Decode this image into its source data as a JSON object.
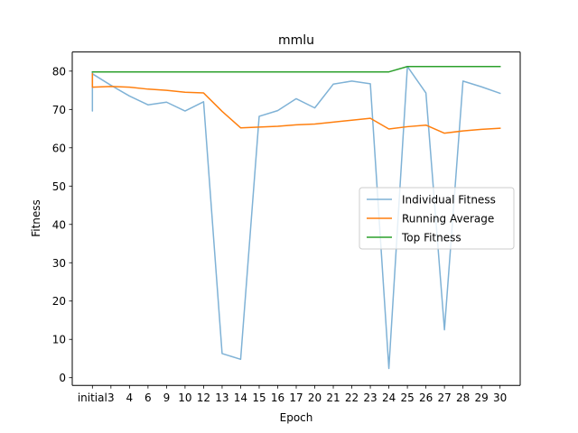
{
  "chart_data": {
    "type": "line",
    "title": "mmlu",
    "xlabel": "Epoch",
    "ylabel": "Fitness",
    "categories": [
      "initial",
      "3",
      "4",
      "6",
      "9",
      "10",
      "12",
      "13",
      "14",
      "15",
      "16",
      "17",
      "20",
      "21",
      "22",
      "23",
      "24",
      "25",
      "26",
      "27",
      "28",
      "29",
      "30"
    ],
    "ylim": [
      -2,
      85
    ],
    "yticks": [
      0,
      10,
      20,
      30,
      40,
      50,
      60,
      70,
      80
    ],
    "grid": false,
    "legend_position": "center-right",
    "series": [
      {
        "name": "Individual Fitness",
        "color": "#7fb2d6",
        "points": [
          [
            0,
            79.5
          ],
          [
            0,
            69.6
          ],
          [
            0,
            79.3
          ],
          [
            1,
            76.3
          ],
          [
            2,
            73.5
          ],
          [
            3,
            71.2
          ],
          [
            4,
            71.9
          ],
          [
            5,
            69.6
          ],
          [
            6,
            72.0
          ],
          [
            7,
            6.3
          ],
          [
            8,
            4.8
          ],
          [
            9,
            68.2
          ],
          [
            10,
            69.7
          ],
          [
            11,
            72.8
          ],
          [
            12,
            70.4
          ],
          [
            13,
            76.6
          ],
          [
            14,
            77.4
          ],
          [
            15,
            76.7
          ],
          [
            16,
            2.4
          ],
          [
            17,
            81.2
          ],
          [
            18,
            74.3
          ],
          [
            19,
            12.5
          ],
          [
            20,
            77.4
          ],
          [
            21,
            75.9
          ],
          [
            22,
            74.2
          ]
        ]
      },
      {
        "name": "Running Average",
        "color": "#ff7f0e",
        "points": [
          [
            0,
            79.3
          ],
          [
            0,
            75.8
          ],
          [
            1,
            76.0
          ],
          [
            2,
            75.8
          ],
          [
            3,
            75.3
          ],
          [
            4,
            75.0
          ],
          [
            5,
            74.5
          ],
          [
            6,
            74.3
          ],
          [
            7,
            69.5
          ],
          [
            8,
            65.2
          ],
          [
            9,
            65.4
          ],
          [
            10,
            65.6
          ],
          [
            11,
            66.0
          ],
          [
            12,
            66.2
          ],
          [
            13,
            66.7
          ],
          [
            14,
            67.2
          ],
          [
            15,
            67.7
          ],
          [
            16,
            64.9
          ],
          [
            17,
            65.5
          ],
          [
            18,
            65.9
          ],
          [
            19,
            63.8
          ],
          [
            20,
            64.4
          ],
          [
            21,
            64.8
          ],
          [
            22,
            65.1
          ]
        ]
      },
      {
        "name": "Top Fitness",
        "color": "#2ca02c",
        "points": [
          [
            0,
            79.8
          ],
          [
            1,
            79.8
          ],
          [
            2,
            79.8
          ],
          [
            3,
            79.8
          ],
          [
            4,
            79.8
          ],
          [
            5,
            79.8
          ],
          [
            6,
            79.8
          ],
          [
            7,
            79.8
          ],
          [
            8,
            79.8
          ],
          [
            9,
            79.8
          ],
          [
            10,
            79.8
          ],
          [
            11,
            79.8
          ],
          [
            12,
            79.8
          ],
          [
            13,
            79.8
          ],
          [
            14,
            79.8
          ],
          [
            15,
            79.8
          ],
          [
            16,
            79.8
          ],
          [
            17,
            81.2
          ],
          [
            18,
            81.2
          ],
          [
            19,
            81.2
          ],
          [
            20,
            81.2
          ],
          [
            21,
            81.2
          ],
          [
            22,
            81.2
          ]
        ]
      }
    ]
  }
}
